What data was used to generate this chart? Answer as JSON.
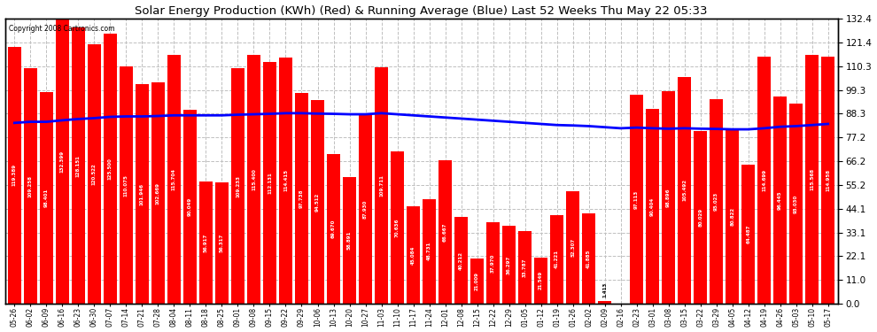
{
  "title": "Solar Energy Production (KWh) (Red) & Running Average (Blue) Last 52 Weeks Thu May 22 05:33",
  "copyright": "Copyright 2008 Cartronics.com",
  "bar_color": "#ff0000",
  "line_color": "#0000ff",
  "background_color": "#ffffff",
  "plot_bg_color": "#ffffff",
  "grid_color": "#c0c0c0",
  "ylim": [
    0.0,
    132.4
  ],
  "yticks": [
    0.0,
    11.0,
    22.1,
    33.1,
    44.1,
    55.2,
    66.2,
    77.2,
    88.3,
    99.3,
    110.3,
    121.4,
    132.4
  ],
  "dates": [
    "05-26",
    "06-02",
    "06-09",
    "06-16",
    "06-23",
    "06-30",
    "07-07",
    "07-14",
    "07-21",
    "07-28",
    "08-04",
    "08-11",
    "08-18",
    "08-25",
    "09-01",
    "09-08",
    "09-15",
    "09-22",
    "09-29",
    "10-06",
    "10-13",
    "10-20",
    "10-27",
    "11-03",
    "11-10",
    "11-17",
    "11-24",
    "12-01",
    "12-08",
    "12-15",
    "12-22",
    "12-29",
    "01-05",
    "01-12",
    "01-19",
    "01-26",
    "02-02",
    "02-09",
    "02-16",
    "02-23",
    "03-01",
    "03-08",
    "03-15",
    "03-22",
    "03-29",
    "04-05",
    "04-12",
    "04-19",
    "04-26",
    "05-03",
    "05-10",
    "05-17"
  ],
  "values": [
    119.389,
    109.258,
    98.401,
    132.399,
    128.151,
    120.522,
    125.5,
    110.075,
    101.946,
    102.669,
    115.704,
    90.049,
    56.917,
    56.317,
    109.233,
    115.4,
    112.131,
    114.415,
    97.738,
    94.512,
    69.67,
    58.891,
    87.93,
    109.711,
    70.636,
    45.084,
    48.731,
    66.667,
    40.212,
    21.009,
    37.97,
    36.297,
    33.787,
    21.549,
    41.221,
    52.307,
    41.885,
    1.413,
    0.0,
    97.113,
    90.404,
    98.896,
    105.492,
    80.029,
    95.023,
    80.822,
    64.487,
    114.699,
    96.445,
    93.03,
    115.568,
    114.958
  ],
  "running_avg": [
    84.0,
    84.5,
    84.5,
    85.2,
    85.8,
    86.2,
    86.8,
    87.0,
    87.0,
    87.2,
    87.5,
    87.5,
    87.5,
    87.5,
    87.8,
    88.0,
    88.2,
    88.5,
    88.5,
    88.3,
    88.2,
    88.0,
    88.0,
    88.5,
    88.0,
    87.5,
    87.0,
    86.5,
    86.0,
    85.5,
    85.0,
    84.5,
    84.0,
    83.5,
    83.0,
    82.8,
    82.5,
    82.0,
    81.5,
    81.8,
    81.5,
    81.3,
    81.5,
    81.3,
    81.2,
    81.0,
    81.0,
    81.5,
    82.2,
    82.5,
    83.0,
    83.5
  ]
}
